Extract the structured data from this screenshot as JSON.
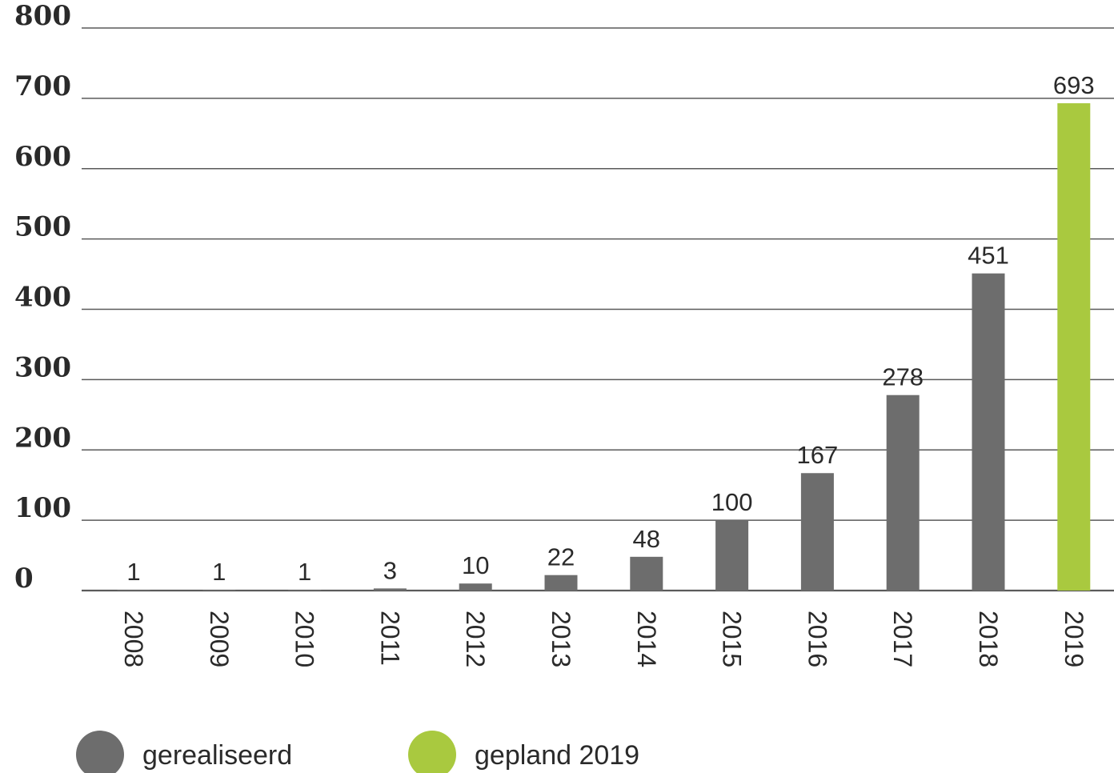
{
  "chart_data": {
    "type": "bar",
    "categories": [
      "2008",
      "2009",
      "2010",
      "2011",
      "2012",
      "2013",
      "2014",
      "2015",
      "2016",
      "2017",
      "2018",
      "2019"
    ],
    "values": [
      1,
      1,
      1,
      3,
      10,
      22,
      48,
      100,
      167,
      278,
      451,
      693
    ],
    "data_labels": [
      "1",
      "1",
      "1",
      "3",
      "10",
      "22",
      "48",
      "100",
      "167",
      "278",
      "451",
      "693"
    ],
    "bar_series": [
      "gerealiseerd",
      "gerealiseerd",
      "gerealiseerd",
      "gerealiseerd",
      "gerealiseerd",
      "gerealiseerd",
      "gerealiseerd",
      "gerealiseerd",
      "gerealiseerd",
      "gerealiseerd",
      "gerealiseerd",
      "gepland 2019"
    ],
    "title": "",
    "xlabel": "",
    "ylabel": "",
    "ylim": [
      0,
      800
    ],
    "yticks": [
      0,
      100,
      200,
      300,
      400,
      500,
      600,
      700,
      800
    ],
    "grid": true,
    "legend_position": "bottom-left",
    "series": [
      {
        "name": "gerealiseerd",
        "color": "#6d6d6d"
      },
      {
        "name": "gepland 2019",
        "color": "#a9c93f"
      }
    ]
  }
}
